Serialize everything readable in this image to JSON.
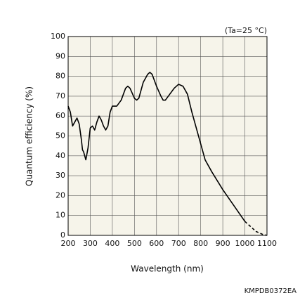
{
  "chart_data": {
    "type": "line",
    "x_label": "Wavelength (nm)",
    "y_label": "Quantum efficiency (%)",
    "annotation": "(Ta=25 °C)",
    "code": "KMPDB0372EA",
    "xlim": [
      200,
      1100
    ],
    "xticks": [
      200,
      300,
      400,
      500,
      600,
      700,
      800,
      900,
      1000,
      1100
    ],
    "ylim": [
      0,
      100
    ],
    "yticks": [
      0,
      10,
      20,
      30,
      40,
      50,
      60,
      70,
      80,
      90,
      100
    ],
    "grid": true,
    "background": "#f6f4ea",
    "series": [
      {
        "color": "#000000",
        "dash": false,
        "x": [
          200,
          210,
          220,
          230,
          240,
          250,
          260,
          265,
          270,
          275,
          280,
          290,
          300,
          310,
          320,
          330,
          340,
          350,
          360,
          370,
          380,
          390,
          400,
          420,
          440,
          460,
          470,
          480,
          500,
          510,
          520,
          540,
          560,
          570,
          580,
          600,
          620,
          630,
          640,
          660,
          680,
          700,
          720,
          740,
          760,
          780,
          800,
          820,
          850,
          900,
          950,
          1000
        ],
        "values": [
          65,
          62,
          55,
          57,
          59,
          56,
          48,
          43,
          42,
          40,
          38,
          44,
          54,
          55,
          53,
          57,
          60,
          58,
          55,
          53,
          55,
          62,
          65,
          65,
          68,
          74,
          75,
          74,
          69,
          68,
          69,
          77,
          81,
          82,
          81,
          75,
          70,
          68,
          68,
          71,
          74,
          76,
          75,
          71,
          62,
          54,
          46,
          38,
          32,
          23,
          15,
          7
        ]
      },
      {
        "color": "#000000",
        "dash": true,
        "x": [
          1000,
          1050,
          1080,
          1100
        ],
        "values": [
          7,
          2,
          0.5,
          0
        ]
      }
    ]
  }
}
